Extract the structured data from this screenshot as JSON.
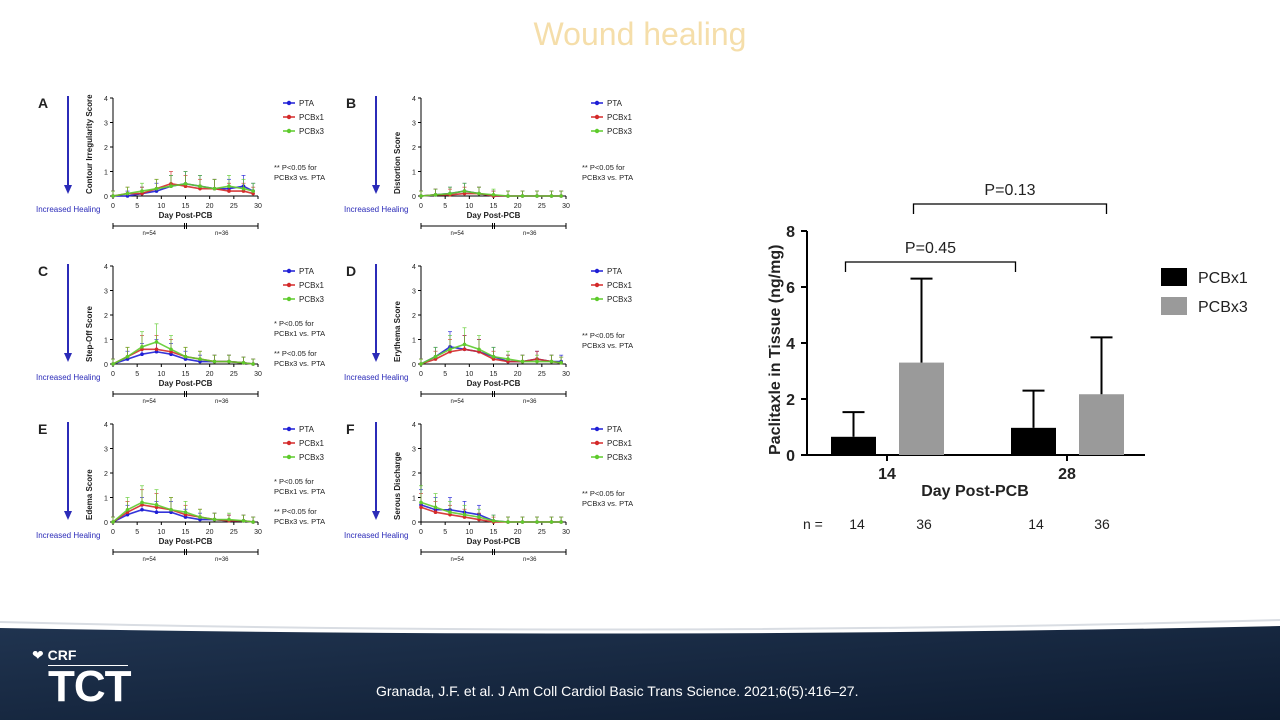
{
  "slide": {
    "title": "Wound healing",
    "citation": "Granada, J.F. et al. J Am Coll Cardiol Basic Trans Science. 2021;6(5):416–27.",
    "logo_crf": "CRF",
    "logo_tct": "TCT"
  },
  "colors": {
    "PTA": "#1f1fd6",
    "PCBx1": "#d42a2a",
    "PCBx3": "#5ecb2c",
    "bar_PCBx1": "#000000",
    "bar_PCBx3": "#9a9a9a"
  },
  "chart_data": [
    {
      "panel": "A",
      "type": "line",
      "ylabel": "Contour Irregularity Score",
      "xlabel": "Day Post-PCB",
      "arrow_label": "Increased Healing",
      "ylim": [
        0,
        4
      ],
      "xlim": [
        0,
        30
      ],
      "yticks": [
        "0",
        "1",
        "2",
        "3",
        "4"
      ],
      "xticks": [
        "0",
        "5",
        "10",
        "15",
        "20",
        "25",
        "30"
      ],
      "legend": [
        "PTA",
        "PCBx1",
        "PCBx3"
      ],
      "annotations": [
        "** P<0.05 for",
        "PCBx3 vs. PTA"
      ],
      "n_left": "n=54",
      "n_right": "n=36",
      "x": [
        0,
        3,
        6,
        9,
        12,
        15,
        18,
        21,
        24,
        27,
        29
      ],
      "series": [
        {
          "name": "PTA",
          "values": [
            0,
            0,
            0.1,
            0.2,
            0.4,
            0.5,
            0.4,
            0.3,
            0.3,
            0.4,
            0.2
          ]
        },
        {
          "name": "PCBx1",
          "values": [
            0,
            0.1,
            0.1,
            0.3,
            0.5,
            0.4,
            0.3,
            0.3,
            0.2,
            0.2,
            0.1
          ]
        },
        {
          "name": "PCBx3",
          "values": [
            0,
            0.1,
            0.2,
            0.3,
            0.4,
            0.5,
            0.4,
            0.3,
            0.4,
            0.3,
            0.2
          ]
        }
      ]
    },
    {
      "panel": "B",
      "type": "line",
      "ylabel": "Distortion Score",
      "xlabel": "Day Post-PCB",
      "arrow_label": "Increased Healing",
      "ylim": [
        0,
        4
      ],
      "xlim": [
        0,
        30
      ],
      "yticks": [
        "0",
        "1",
        "2",
        "3",
        "4"
      ],
      "xticks": [
        "0",
        "5",
        "10",
        "15",
        "20",
        "25",
        "30"
      ],
      "legend": [
        "PTA",
        "PCBx1",
        "PCBx3"
      ],
      "annotations": [
        "** P<0.05 for",
        "PCBx3 vs. PTA"
      ],
      "n_left": "n=54",
      "n_right": "n=36",
      "x": [
        0,
        3,
        6,
        9,
        12,
        15,
        18,
        21,
        24,
        27,
        29
      ],
      "series": [
        {
          "name": "PTA",
          "values": [
            0,
            0.05,
            0.1,
            0.2,
            0.1,
            0,
            0,
            0,
            0,
            0,
            0
          ]
        },
        {
          "name": "PCBx1",
          "values": [
            0,
            0.05,
            0.05,
            0.1,
            0.1,
            0,
            0,
            0,
            0,
            0,
            0
          ]
        },
        {
          "name": "PCBx3",
          "values": [
            0,
            0.05,
            0.1,
            0.2,
            0.1,
            0.05,
            0,
            0,
            0,
            0,
            0
          ]
        }
      ]
    },
    {
      "panel": "C",
      "type": "line",
      "ylabel": "Step-Off Score",
      "xlabel": "Day Post-PCB",
      "arrow_label": "Increased Healing",
      "ylim": [
        0,
        4
      ],
      "xlim": [
        0,
        30
      ],
      "yticks": [
        "0",
        "1",
        "2",
        "3",
        "4"
      ],
      "xticks": [
        "0",
        "5",
        "10",
        "15",
        "20",
        "25",
        "30"
      ],
      "legend": [
        "PTA",
        "PCBx1",
        "PCBx3"
      ],
      "annotations": [
        "* P<0.05 for",
        "PCBx1 vs. PTA",
        "** P<0.05 for",
        "PCBx3 vs. PTA"
      ],
      "n_left": "n=54",
      "n_right": "n=36",
      "x": [
        0,
        3,
        6,
        9,
        12,
        15,
        18,
        21,
        24,
        27,
        29
      ],
      "series": [
        {
          "name": "PTA",
          "values": [
            0,
            0.2,
            0.4,
            0.5,
            0.4,
            0.2,
            0.1,
            0.1,
            0.1,
            0.05,
            0
          ]
        },
        {
          "name": "PCBx1",
          "values": [
            0,
            0.3,
            0.6,
            0.6,
            0.5,
            0.3,
            0.2,
            0.1,
            0.1,
            0.05,
            0
          ]
        },
        {
          "name": "PCBx3",
          "values": [
            0,
            0.3,
            0.7,
            0.9,
            0.6,
            0.3,
            0.2,
            0.1,
            0.1,
            0.05,
            0
          ]
        }
      ]
    },
    {
      "panel": "D",
      "type": "line",
      "ylabel": "Erythema Score",
      "xlabel": "Day Post-PCB",
      "arrow_label": "Increased Healing",
      "ylim": [
        0,
        4
      ],
      "xlim": [
        0,
        30
      ],
      "yticks": [
        "0",
        "1",
        "2",
        "3",
        "4"
      ],
      "xticks": [
        "0",
        "5",
        "10",
        "15",
        "20",
        "25",
        "30"
      ],
      "legend": [
        "PTA",
        "PCBx1",
        "PCBx3"
      ],
      "annotations": [
        "** P<0.05 for",
        "PCBx3 vs. PTA"
      ],
      "n_left": "n=54",
      "n_right": "n=36",
      "x": [
        0,
        3,
        6,
        9,
        12,
        15,
        18,
        21,
        24,
        27,
        29
      ],
      "series": [
        {
          "name": "PTA",
          "values": [
            0,
            0.3,
            0.7,
            0.6,
            0.5,
            0.3,
            0.1,
            0.1,
            0.2,
            0.1,
            0.1
          ]
        },
        {
          "name": "PCBx1",
          "values": [
            0,
            0.2,
            0.5,
            0.6,
            0.5,
            0.2,
            0.1,
            0.1,
            0.2,
            0.1,
            0.05
          ]
        },
        {
          "name": "PCBx3",
          "values": [
            0,
            0.3,
            0.6,
            0.8,
            0.6,
            0.3,
            0.2,
            0.1,
            0.1,
            0.1,
            0.05
          ]
        }
      ]
    },
    {
      "panel": "E",
      "type": "line",
      "ylabel": "Edema Score",
      "xlabel": "Day Post-PCB",
      "arrow_label": "Increased Healing",
      "ylim": [
        0,
        4
      ],
      "xlim": [
        0,
        30
      ],
      "yticks": [
        "0",
        "1",
        "2",
        "3",
        "4"
      ],
      "xticks": [
        "0",
        "5",
        "10",
        "15",
        "20",
        "25",
        "30"
      ],
      "legend": [
        "PTA",
        "PCBx1",
        "PCBx3"
      ],
      "annotations": [
        "* P<0.05 for",
        "PCBx1 vs. PTA",
        "** P<0.05 for",
        "PCBx3 vs. PTA"
      ],
      "n_left": "n=54",
      "n_right": "n=36",
      "x": [
        0,
        3,
        6,
        9,
        12,
        15,
        18,
        21,
        24,
        27,
        29
      ],
      "series": [
        {
          "name": "PTA",
          "values": [
            0,
            0.3,
            0.5,
            0.4,
            0.4,
            0.2,
            0.1,
            0.1,
            0.05,
            0.05,
            0
          ]
        },
        {
          "name": "PCBx1",
          "values": [
            0,
            0.4,
            0.7,
            0.6,
            0.5,
            0.3,
            0.2,
            0.1,
            0.05,
            0.05,
            0
          ]
        },
        {
          "name": "PCBx3",
          "values": [
            0,
            0.5,
            0.8,
            0.7,
            0.5,
            0.4,
            0.2,
            0.1,
            0.1,
            0.05,
            0
          ]
        }
      ]
    },
    {
      "panel": "F",
      "type": "line",
      "ylabel": "Serous Discharge",
      "xlabel": "Day Post-PCB",
      "arrow_label": "Increased Healing",
      "ylim": [
        0,
        4
      ],
      "xlim": [
        0,
        30
      ],
      "yticks": [
        "0",
        "1",
        "2",
        "3",
        "4"
      ],
      "xticks": [
        "0",
        "5",
        "10",
        "15",
        "20",
        "25",
        "30"
      ],
      "legend": [
        "PTA",
        "PCBx1",
        "PCBx3"
      ],
      "annotations": [
        "** P<0.05 for",
        "PCBx3 vs. PTA"
      ],
      "n_left": "n=54",
      "n_right": "n=36",
      "x": [
        0,
        3,
        6,
        9,
        12,
        15,
        18,
        21,
        24,
        27,
        29
      ],
      "series": [
        {
          "name": "PTA",
          "values": [
            0.7,
            0.5,
            0.5,
            0.4,
            0.3,
            0.05,
            0,
            0,
            0,
            0,
            0
          ]
        },
        {
          "name": "PCBx1",
          "values": [
            0.6,
            0.4,
            0.3,
            0.2,
            0.1,
            0,
            0,
            0,
            0,
            0,
            0
          ]
        },
        {
          "name": "PCBx3",
          "values": [
            0.8,
            0.6,
            0.4,
            0.3,
            0.2,
            0.05,
            0,
            0,
            0,
            0,
            0
          ]
        }
      ]
    },
    {
      "panel": "tissue",
      "type": "bar",
      "ylabel": "Paclitaxle in  Tissue (ng/mg)",
      "xlabel": "Day Post-PCB",
      "categories": [
        "14",
        "28"
      ],
      "ylim": [
        0,
        8
      ],
      "yticks": [
        "0",
        "2",
        "4",
        "6",
        "8"
      ],
      "series": [
        {
          "name": "PCBx1",
          "values": [
            0.65,
            0.97
          ],
          "error": [
            0.88,
            1.33
          ]
        },
        {
          "name": "PCBx3",
          "values": [
            3.3,
            2.17
          ],
          "error": [
            3.0,
            2.03
          ]
        }
      ],
      "brackets": [
        {
          "label": "P=0.45",
          "from": [
            "14",
            "PCBx1"
          ],
          "to": [
            "28",
            "PCBx1"
          ]
        },
        {
          "label": "P=0.13",
          "from": [
            "14",
            "PCBx3"
          ],
          "to": [
            "28",
            "PCBx3"
          ]
        }
      ],
      "n_label": "n =",
      "n_values": [
        "14",
        "36",
        "14",
        "36"
      ]
    }
  ]
}
